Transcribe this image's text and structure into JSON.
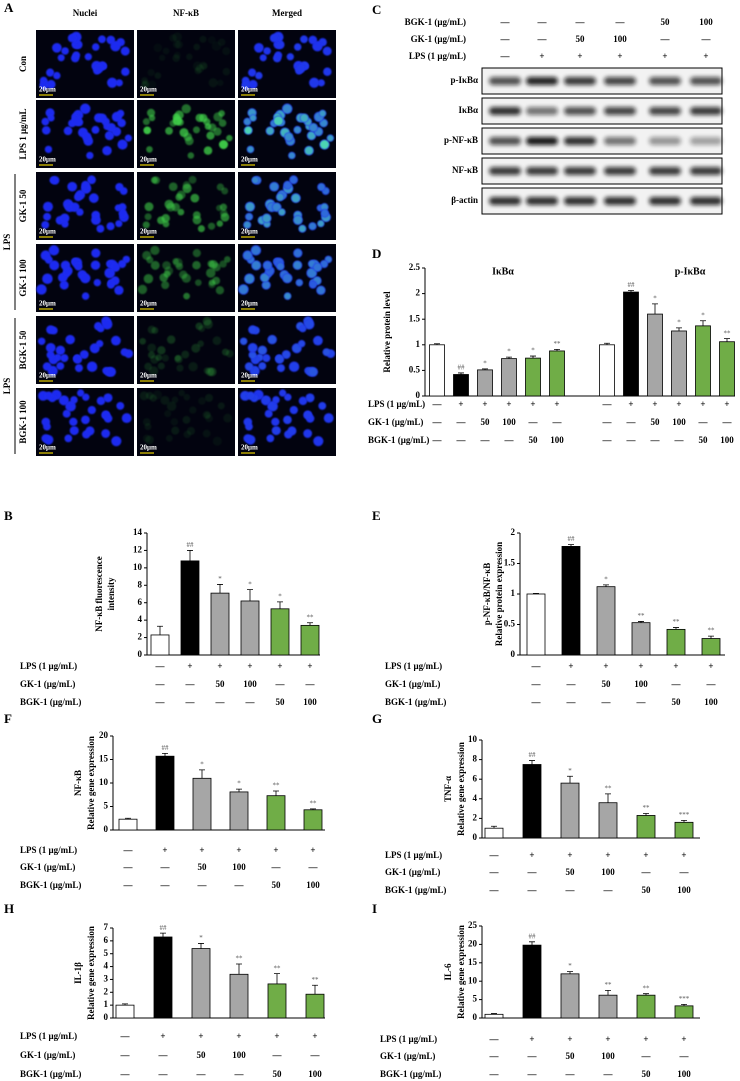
{
  "panel_a": {
    "letter": "A",
    "columns": [
      "Nuclei",
      "NF-κB",
      "Merged"
    ],
    "rows": [
      "Con",
      "LPS 1 μg/mL",
      "GK-1 50",
      "GK-1 100",
      "BGK-1 50",
      "BGK-1 100"
    ],
    "groups": [
      "LPS",
      "LPS"
    ],
    "scale_bar": "20μm"
  },
  "panel_c": {
    "letter": "C",
    "treatments": [
      {
        "label": "BGK-1 (μg/mL)",
        "cells": [
          "—",
          "—",
          "—",
          "—",
          "50",
          "100"
        ]
      },
      {
        "label": "GK-1 (μg/mL)",
        "cells": [
          "—",
          "—",
          "50",
          "100",
          "—",
          "—"
        ]
      },
      {
        "label": "LPS  (1 μg/mL)",
        "cells": [
          "—",
          "+",
          "+",
          "+",
          "+",
          "+"
        ]
      }
    ],
    "blots": [
      "p-IκBα",
      "IκBα",
      "p-NF-κB",
      "NF-κB",
      "β-actin"
    ]
  },
  "chart_data": [
    {
      "type": "bar",
      "panel": "D",
      "ylabel": [
        "Relative protein level"
      ],
      "ylim": [
        0,
        2.5
      ],
      "yticks": [
        0,
        0.5,
        1,
        1.5,
        2,
        2.5
      ],
      "colors": [
        "#ffffff",
        "#000000",
        "#a6a6a6",
        "#a6a6a6",
        "#70ad47",
        "#70ad47"
      ],
      "series": [
        {
          "name": "IκBα",
          "values": [
            1.0,
            0.42,
            0.51,
            0.73,
            0.74,
            0.88
          ],
          "errors": [
            0.02,
            0.03,
            0.02,
            0.03,
            0.04,
            0.03
          ],
          "annotations": [
            null,
            "##",
            "*",
            "*",
            "*",
            "**"
          ]
        },
        {
          "name": "p-IκBα",
          "values": [
            1.0,
            2.03,
            1.6,
            1.27,
            1.37,
            1.06
          ],
          "errors": [
            0.03,
            0.03,
            0.2,
            0.06,
            0.1,
            0.06
          ],
          "annotations": [
            null,
            "##",
            "*",
            "*",
            "*",
            "**"
          ]
        }
      ],
      "treatments": [
        {
          "label": "LPS (1 μg/mL)",
          "cells": [
            "—",
            "+",
            "+",
            "+",
            "+",
            "+",
            "—",
            "+",
            "+",
            "+",
            "+",
            "+"
          ]
        },
        {
          "label": "GK-1 (μg/mL)",
          "cells": [
            "—",
            "—",
            "50",
            "100",
            "—",
            "—",
            "—",
            "—",
            "50",
            "100",
            "—",
            "—"
          ]
        },
        {
          "label": "BGK-1 (μg/mL)",
          "cells": [
            "—",
            "—",
            "—",
            "—",
            "50",
            "100",
            "—",
            "—",
            "—",
            "—",
            "50",
            "100"
          ]
        }
      ]
    },
    {
      "type": "bar",
      "panel": "B",
      "ylabel": [
        "NF-κB fluorescence",
        "intensity"
      ],
      "ylim": [
        0,
        14
      ],
      "yticks": [
        0,
        2,
        4,
        6,
        8,
        10,
        12,
        14
      ],
      "colors": [
        "#ffffff",
        "#000000",
        "#a6a6a6",
        "#a6a6a6",
        "#70ad47",
        "#70ad47"
      ],
      "series": [
        {
          "values": [
            2.3,
            10.8,
            7.1,
            6.2,
            5.3,
            3.4
          ],
          "errors": [
            1.0,
            1.2,
            1.0,
            1.3,
            0.8,
            0.3
          ],
          "annotations": [
            null,
            "##",
            "*",
            "*",
            "*",
            "**"
          ]
        }
      ],
      "treatments": [
        {
          "label": "LPS (1 μg/mL)",
          "cells": [
            "—",
            "+",
            "+",
            "+",
            "+",
            "+"
          ]
        },
        {
          "label": "GK-1 (μg/mL)",
          "cells": [
            "—",
            "—",
            "50",
            "100",
            "—",
            "—"
          ]
        },
        {
          "label": "BGK-1 (μg/mL)",
          "cells": [
            "—",
            "—",
            "—",
            "—",
            "50",
            "100"
          ]
        }
      ]
    },
    {
      "type": "bar",
      "panel": "E",
      "ylabel": [
        "p-NF-κB/NF-κB",
        "Relative protein expression"
      ],
      "ylim": [
        0,
        2
      ],
      "yticks": [
        0,
        0.5,
        1,
        1.5,
        2
      ],
      "colors": [
        "#ffffff",
        "#000000",
        "#a6a6a6",
        "#a6a6a6",
        "#70ad47",
        "#70ad47"
      ],
      "series": [
        {
          "values": [
            1.0,
            1.78,
            1.12,
            0.53,
            0.42,
            0.27
          ],
          "errors": [
            0.01,
            0.03,
            0.03,
            0.02,
            0.03,
            0.04
          ],
          "annotations": [
            null,
            "##",
            "*",
            "**",
            "**",
            "**"
          ]
        }
      ],
      "treatments": [
        {
          "label": "LPS (1 μg/mL)",
          "cells": [
            "—",
            "+",
            "+",
            "+",
            "+",
            "+"
          ]
        },
        {
          "label": "GK-1 (μg/mL)",
          "cells": [
            "—",
            "—",
            "50",
            "100",
            "—",
            "—"
          ]
        },
        {
          "label": "BGK-1  (μg/mL)",
          "cells": [
            "—",
            "—",
            "—",
            "—",
            "50",
            "100"
          ]
        }
      ]
    },
    {
      "type": "bar",
      "panel": "F",
      "ylabel": [
        "NF-κB",
        "Relative gene expression"
      ],
      "ylim": [
        0,
        20
      ],
      "yticks": [
        0,
        5,
        10,
        15,
        20
      ],
      "colors": [
        "#ffffff",
        "#000000",
        "#a6a6a6",
        "#a6a6a6",
        "#70ad47",
        "#70ad47"
      ],
      "series": [
        {
          "values": [
            2.3,
            15.7,
            11.0,
            8.1,
            7.3,
            4.3
          ],
          "errors": [
            0.2,
            0.6,
            1.8,
            0.6,
            1.0,
            0.2
          ],
          "annotations": [
            null,
            "##",
            "*",
            "*",
            "**",
            "**"
          ]
        }
      ],
      "treatments": [
        {
          "label": "LPS (1 μg/mL)",
          "cells": [
            "—",
            "+",
            "+",
            "+",
            "+",
            "+"
          ]
        },
        {
          "label": "GK-1 (μg/mL)",
          "cells": [
            "—",
            "—",
            "50",
            "100",
            "—",
            "—"
          ]
        },
        {
          "label": "BGK-1 (μg/mL)",
          "cells": [
            "—",
            "—",
            "—",
            "—",
            "50",
            "100"
          ]
        }
      ]
    },
    {
      "type": "bar",
      "panel": "G",
      "ylabel": [
        "TNF-α",
        "Relative gene expression"
      ],
      "ylim": [
        0,
        10
      ],
      "yticks": [
        0,
        2,
        4,
        6,
        8,
        10
      ],
      "colors": [
        "#ffffff",
        "#000000",
        "#a6a6a6",
        "#a6a6a6",
        "#70ad47",
        "#70ad47"
      ],
      "series": [
        {
          "values": [
            1.0,
            7.5,
            5.6,
            3.6,
            2.3,
            1.6
          ],
          "errors": [
            0.2,
            0.4,
            0.7,
            0.9,
            0.2,
            0.2
          ],
          "annotations": [
            null,
            "##",
            "*",
            "**",
            "**",
            "***"
          ]
        }
      ],
      "treatments": [
        {
          "label": "LPS (1 μg/mL)",
          "cells": [
            "—",
            "+",
            "+",
            "+",
            "+",
            "+"
          ]
        },
        {
          "label": "GK-1 (μg/mL)",
          "cells": [
            "—",
            "—",
            "50",
            "100",
            "—",
            "—"
          ]
        },
        {
          "label": "BGK-1  (μg/mL)",
          "cells": [
            "—",
            "—",
            "—",
            "—",
            "50",
            "100"
          ]
        }
      ]
    },
    {
      "type": "bar",
      "panel": "H",
      "ylabel": [
        "IL-1β",
        "Relative gene expression"
      ],
      "ylim": [
        0,
        7
      ],
      "yticks": [
        0,
        1,
        2,
        3,
        4,
        5,
        6,
        7
      ],
      "colors": [
        "#ffffff",
        "#000000",
        "#a6a6a6",
        "#a6a6a6",
        "#70ad47",
        "#70ad47"
      ],
      "series": [
        {
          "values": [
            1.0,
            6.3,
            5.4,
            3.4,
            2.65,
            1.85
          ],
          "errors": [
            0.1,
            0.3,
            0.4,
            0.8,
            0.8,
            0.7
          ],
          "annotations": [
            null,
            "##",
            "*",
            "**",
            "**",
            "**"
          ]
        }
      ],
      "treatments": [
        {
          "label": "LPS (1 μg/mL)",
          "cells": [
            "—",
            "+",
            "+",
            "+",
            "+",
            "+"
          ]
        },
        {
          "label": "GK-1 (μg/mL)",
          "cells": [
            "—",
            "—",
            "50",
            "100",
            "—",
            "—"
          ]
        },
        {
          "label": "BGK-1 (μg/mL)",
          "cells": [
            "—",
            "—",
            "—",
            "—",
            "50",
            "100"
          ]
        }
      ]
    },
    {
      "type": "bar",
      "panel": "I",
      "ylabel": [
        "IL-6",
        "Relative gene expression"
      ],
      "ylim": [
        0,
        25
      ],
      "yticks": [
        0,
        5,
        10,
        15,
        20,
        25
      ],
      "colors": [
        "#ffffff",
        "#000000",
        "#a6a6a6",
        "#a6a6a6",
        "#70ad47",
        "#70ad47"
      ],
      "series": [
        {
          "values": [
            1.0,
            19.8,
            12.0,
            6.2,
            6.2,
            3.3
          ],
          "errors": [
            0.2,
            0.9,
            0.6,
            1.3,
            0.4,
            0.4
          ],
          "annotations": [
            null,
            "##",
            "*",
            "**",
            "**",
            "***"
          ]
        }
      ],
      "treatments": [
        {
          "label": "LPS (1 μg/mL)",
          "cells": [
            "—",
            "+",
            "+",
            "+",
            "+",
            "+"
          ]
        },
        {
          "label": "GK-1 (μg/mL)",
          "cells": [
            "—",
            "—",
            "50",
            "100",
            "—",
            "—"
          ]
        },
        {
          "label": "BGK-1  (μg/mL)",
          "cells": [
            "—",
            "—",
            "—",
            "—",
            "50",
            "100"
          ]
        }
      ]
    }
  ]
}
